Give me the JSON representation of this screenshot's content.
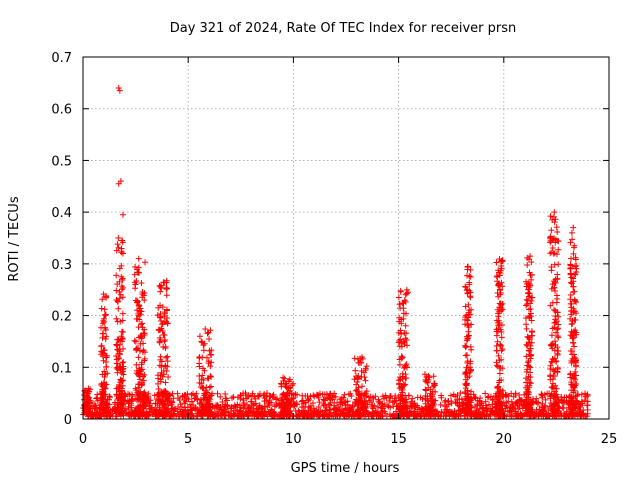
{
  "chart_data": {
    "type": "scatter",
    "title": "Day 321 of 2024, Rate Of TEC Index for receiver prsn",
    "xlabel": "GPS time / hours",
    "ylabel": "ROTI / TECUs",
    "xlim": [
      0,
      25
    ],
    "ylim": [
      0,
      0.7
    ],
    "xticks": [
      0,
      5,
      10,
      15,
      20,
      25
    ],
    "yticks": [
      0,
      0.1,
      0.2,
      0.3,
      0.4,
      0.5,
      0.6,
      0.7
    ],
    "xtick_labels": [
      "0",
      "5",
      "10",
      "15",
      "20",
      "25"
    ],
    "ytick_labels": [
      "0",
      "0.1",
      "0.2",
      "0.3",
      "0.4",
      "0.5",
      "0.6",
      "0.7"
    ],
    "grid": true,
    "marker": "plus",
    "series_color": "#ff0000",
    "series": [
      {
        "name": "ROTI",
        "baseline": {
          "x_start": 0.0,
          "x_end": 24.0,
          "typical_min": 0.005,
          "typical_max": 0.05
        },
        "clusters": [
          {
            "x_center": 0.2,
            "x_width": 0.3,
            "y_max": 0.06
          },
          {
            "x_center": 1.0,
            "x_width": 0.3,
            "y_max": 0.25
          },
          {
            "x_center": 1.75,
            "x_width": 0.35,
            "y_max": 0.35
          },
          {
            "x_center": 2.7,
            "x_width": 0.5,
            "y_max": 0.31
          },
          {
            "x_center": 3.8,
            "x_width": 0.5,
            "y_max": 0.27
          },
          {
            "x_center": 5.8,
            "x_width": 0.6,
            "y_max": 0.18
          },
          {
            "x_center": 9.7,
            "x_width": 0.6,
            "y_max": 0.08
          },
          {
            "x_center": 13.2,
            "x_width": 0.6,
            "y_max": 0.12
          },
          {
            "x_center": 15.2,
            "x_width": 0.4,
            "y_max": 0.25
          },
          {
            "x_center": 16.5,
            "x_width": 0.5,
            "y_max": 0.09
          },
          {
            "x_center": 18.3,
            "x_width": 0.3,
            "y_max": 0.3
          },
          {
            "x_center": 19.8,
            "x_width": 0.3,
            "y_max": 0.31
          },
          {
            "x_center": 21.2,
            "x_width": 0.3,
            "y_max": 0.32
          },
          {
            "x_center": 22.4,
            "x_width": 0.4,
            "y_max": 0.4
          },
          {
            "x_center": 23.3,
            "x_width": 0.3,
            "y_max": 0.37
          }
        ],
        "notable_points": [
          {
            "x": 1.7,
            "y": 0.64
          },
          {
            "x": 1.75,
            "y": 0.635
          },
          {
            "x": 1.7,
            "y": 0.455
          },
          {
            "x": 1.8,
            "y": 0.46
          },
          {
            "x": 1.9,
            "y": 0.395
          },
          {
            "x": 1.85,
            "y": 0.345
          },
          {
            "x": 1.9,
            "y": 0.32
          },
          {
            "x": 2.65,
            "y": 0.31
          },
          {
            "x": 15.45,
            "y": 0.245
          },
          {
            "x": 22.4,
            "y": 0.4
          },
          {
            "x": 22.3,
            "y": 0.385
          },
          {
            "x": 23.3,
            "y": 0.37
          },
          {
            "x": 23.35,
            "y": 0.335
          },
          {
            "x": 23.4,
            "y": 0.28
          },
          {
            "x": 19.95,
            "y": 0.305
          },
          {
            "x": 18.3,
            "y": 0.295
          },
          {
            "x": 21.25,
            "y": 0.315
          }
        ]
      }
    ]
  }
}
